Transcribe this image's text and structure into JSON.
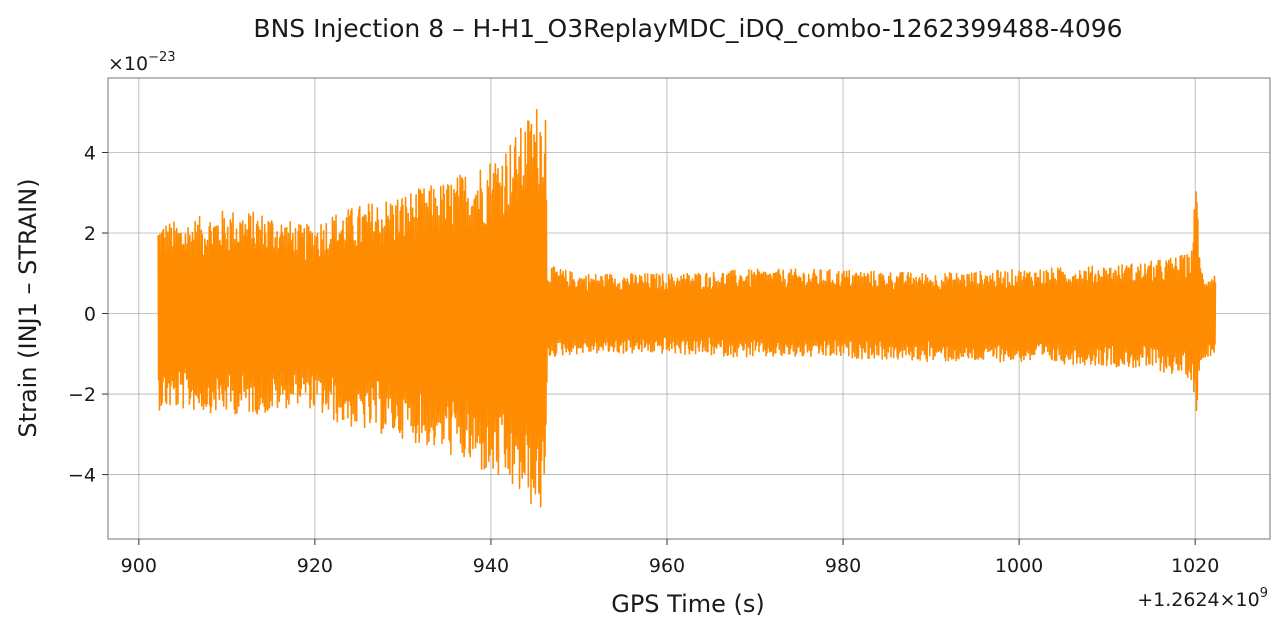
{
  "chart_data": {
    "type": "line",
    "title": "BNS Injection 8 – H-H1_O3ReplayMDC_iDQ_combo-1262399488-4096",
    "xlabel": "GPS Time (s)",
    "ylabel": "Strain (INJ1 – STRAIN)",
    "x_offset_text": "+1.2624×10",
    "x_offset_exponent": "9",
    "y_multiplier_text": "×10",
    "y_multiplier_exponent": "−23",
    "xlim": [
      896.5,
      1028.5
    ],
    "ylim": [
      -5.6,
      5.85
    ],
    "xticks": [
      900,
      920,
      940,
      960,
      980,
      1000,
      1020
    ],
    "xtick_labels": [
      "900",
      "920",
      "940",
      "960",
      "980",
      "1000",
      "1020"
    ],
    "yticks": [
      -4,
      -2,
      0,
      2,
      4
    ],
    "ytick_labels": [
      "−4",
      "−2",
      "0",
      "2",
      "4"
    ],
    "grid": true,
    "series": [
      {
        "color": "#ff8c00",
        "envelope": {
          "x": [
            902.2,
            905,
            910,
            915,
            918.5,
            919,
            922,
            925,
            930,
            935,
            940,
            943,
            945,
            946.2,
            946.4,
            950,
            960,
            970,
            980,
            990,
            1000,
            1010,
            1015,
            1019.5,
            1020.2,
            1020.6,
            1021,
            1022.3
          ],
          "upper": [
            2.3,
            2.3,
            2.6,
            2.5,
            2.2,
            2.2,
            2.5,
            2.7,
            3.0,
            3.3,
            3.9,
            4.5,
            5.2,
            5.4,
            1.2,
            1.0,
            1.0,
            1.1,
            1.1,
            1.0,
            1.1,
            1.2,
            1.3,
            1.5,
            3.5,
            1.2,
            1.0,
            1.0
          ],
          "lower": [
            -2.4,
            -2.4,
            -2.5,
            -2.5,
            -2.2,
            -2.3,
            -2.7,
            -2.9,
            -3.1,
            -3.5,
            -4.1,
            -4.5,
            -4.9,
            -5.05,
            -1.1,
            -1.0,
            -1.0,
            -1.1,
            -1.1,
            -1.2,
            -1.2,
            -1.3,
            -1.4,
            -1.6,
            -2.5,
            -1.3,
            -1.1,
            -1.0
          ]
        }
      }
    ]
  }
}
